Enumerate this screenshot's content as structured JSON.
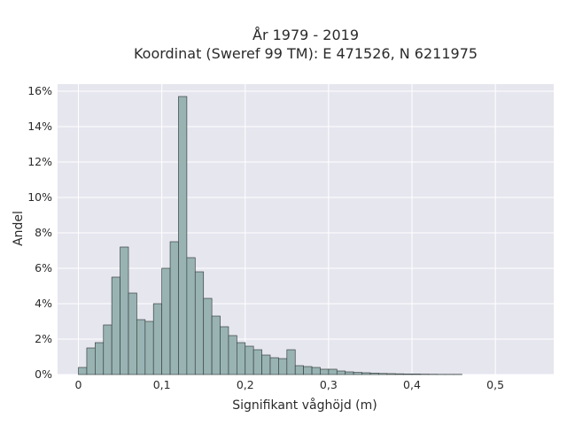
{
  "chart_data": {
    "type": "bar",
    "title_lines": [
      "År 1979 - 2019",
      "Koordinat (Sweref 99 TM): E 471526, N 6211975"
    ],
    "xlabel": "Signifikant våghöjd (m)",
    "ylabel": "Andel",
    "x_ticks": [
      {
        "value": 0,
        "label": "0"
      },
      {
        "value": 0.1,
        "label": "0,1"
      },
      {
        "value": 0.2,
        "label": "0,2"
      },
      {
        "value": 0.3,
        "label": "0,3"
      },
      {
        "value": 0.4,
        "label": "0,4"
      },
      {
        "value": 0.5,
        "label": "0,5"
      }
    ],
    "y_ticks": [
      {
        "value": 0,
        "label": "0%"
      },
      {
        "value": 2,
        "label": "2%"
      },
      {
        "value": 4,
        "label": "4%"
      },
      {
        "value": 6,
        "label": "6%"
      },
      {
        "value": 8,
        "label": "8%"
      },
      {
        "value": 10,
        "label": "10%"
      },
      {
        "value": 12,
        "label": "12%"
      },
      {
        "value": 14,
        "label": "14%"
      },
      {
        "value": 16,
        "label": "16%"
      }
    ],
    "xlim": [
      -0.025,
      0.57
    ],
    "ylim": [
      0,
      16.4
    ],
    "bin_width": 0.01,
    "bin_start": 0,
    "values": [
      0.4,
      1.5,
      1.8,
      2.8,
      5.5,
      7.2,
      4.6,
      3.1,
      3.0,
      4.0,
      6.0,
      7.5,
      15.7,
      6.6,
      5.8,
      4.3,
      3.3,
      2.7,
      2.2,
      1.8,
      1.6,
      1.4,
      1.1,
      0.95,
      0.9,
      1.4,
      0.5,
      0.45,
      0.4,
      0.3,
      0.3,
      0.2,
      0.15,
      0.12,
      0.1,
      0.08,
      0.06,
      0.05,
      0.04,
      0.03,
      0.03,
      0.02,
      0.015,
      0.01,
      0.01,
      0.01,
      0.0,
      0.0,
      0.0,
      0.0
    ],
    "grid": true,
    "colors": {
      "plot_background": "#e6e6ef",
      "grid": "#ffffff",
      "bar_fill": "#99b3b3",
      "bar_edge": "#3a4544"
    }
  }
}
